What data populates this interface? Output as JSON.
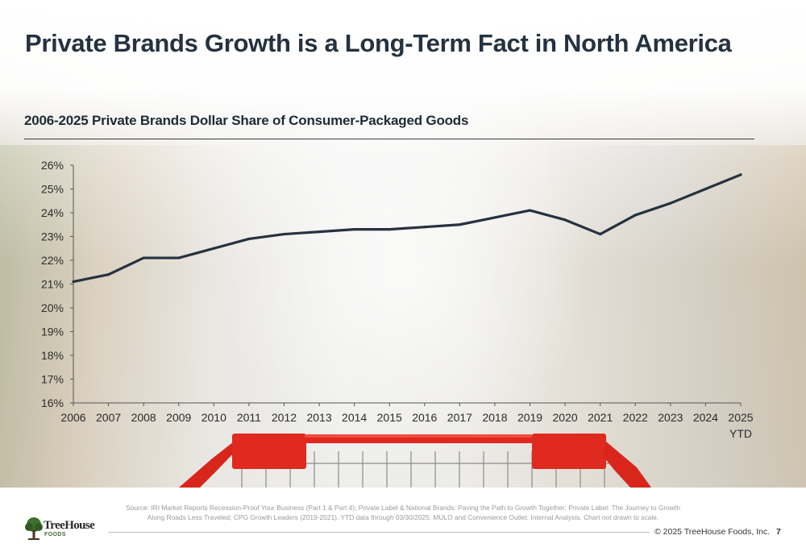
{
  "page": {
    "title": "Private Brands Growth is a Long-Term Fact in North America",
    "source": "Source: IRI Market Reports Recession-Proof Your Business (Part 1 & Part 4); Private Label & National Brands: Paving the Path to Growth Together; Private Label: The Journey to Growth Along Roads Less Traveled; CPG Growth Leaders (2019-2021). YTD data through 03/30/2025. MULO and Convenience Outlet. Internal Analysis. Chart not drawn to scale.",
    "copyright": "© 2025 TreeHouse Foods, Inc.",
    "page_number": "7"
  },
  "logo": {
    "name": "TreeHouse",
    "sub": "FOODS",
    "icon": "tree-icon"
  },
  "colors": {
    "title": "#253240",
    "line": "#26323f",
    "cart_red": "#d9261c"
  },
  "chart_data": {
    "type": "line",
    "title": "2006-2025 Private Brands Dollar Share of Consumer-Packaged Goods",
    "xlabel": "",
    "ylabel": "",
    "categories": [
      "2006",
      "2007",
      "2008",
      "2009",
      "2010",
      "2011",
      "2012",
      "2013",
      "2014",
      "2015",
      "2016",
      "2017",
      "2018",
      "2019",
      "2020",
      "2021",
      "2022",
      "2023",
      "2024",
      "2025"
    ],
    "category_sublabels": {
      "2025": "YTD"
    },
    "y_tick_labels": [
      "16%",
      "17%",
      "18%",
      "19%",
      "20%",
      "21%",
      "22%",
      "23%",
      "24%",
      "25%",
      "26%"
    ],
    "ylim": [
      16,
      26
    ],
    "grid": false,
    "series": [
      {
        "values": [
          21.1,
          21.4,
          22.1,
          22.1,
          22.5,
          22.9,
          23.1,
          23.2,
          23.3,
          23.3,
          23.4,
          23.5,
          23.8,
          24.1,
          23.7,
          23.1,
          23.9,
          24.4,
          25.0,
          25.6
        ]
      }
    ]
  }
}
